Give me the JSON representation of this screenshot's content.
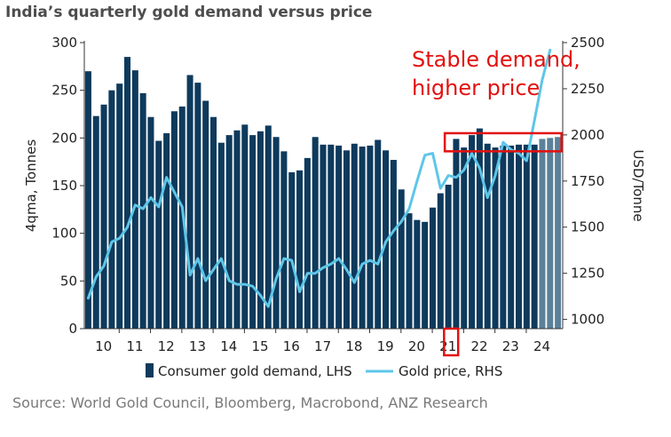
{
  "title": "India’s quarterly gold demand versus price",
  "source": "Source: World Gold Council, Bloomberg, Macrobond, ANZ Research",
  "chart_data": {
    "type": "bar",
    "title": "India’s quarterly gold demand versus price",
    "ylabel_left": "4qma, Tonnes",
    "ylabel_right": "USD/Tonne",
    "ylim_left": [
      0,
      300
    ],
    "ylim_right": [
      950,
      2500
    ],
    "yticks_left": [
      0,
      50,
      100,
      150,
      200,
      250,
      300
    ],
    "yticks_right": [
      1000,
      1250,
      1500,
      1750,
      2000,
      2250,
      2500
    ],
    "x_year_labels": [
      "10",
      "11",
      "12",
      "13",
      "14",
      "15",
      "16",
      "17",
      "18",
      "19",
      "20",
      "21",
      "22",
      "23",
      "24"
    ],
    "legend_position": "bottom",
    "grid": false,
    "colors": {
      "demand": "#0e3a5c",
      "demand_forecast": "#5b8199",
      "price": "#5ec6e8",
      "annotation": "#e3100f"
    },
    "series": [
      {
        "name": "Consumer gold demand, LHS",
        "axis": "left",
        "values": [
          270,
          223,
          235,
          250,
          257,
          285,
          271,
          247,
          222,
          197,
          205,
          228,
          233,
          266,
          258,
          239,
          222,
          195,
          203,
          208,
          214,
          203,
          207,
          213,
          201,
          186,
          164,
          166,
          179,
          201,
          193,
          193,
          192,
          187,
          194,
          191,
          192,
          198,
          187,
          177,
          146,
          121,
          114,
          112,
          127,
          142,
          151,
          199,
          190,
          203,
          210,
          194,
          190,
          192,
          192,
          193,
          193,
          193,
          199,
          200,
          201
        ],
        "forecast_from_index": 58
      },
      {
        "name": "Gold price, RHS",
        "axis": "right",
        "points": [
          [
            0,
            1115
          ],
          [
            1,
            1230
          ],
          [
            2,
            1290
          ],
          [
            3,
            1420
          ],
          [
            4,
            1440
          ],
          [
            5,
            1500
          ],
          [
            6,
            1620
          ],
          [
            7,
            1600
          ],
          [
            8,
            1660
          ],
          [
            9,
            1610
          ],
          [
            10,
            1770
          ],
          [
            11,
            1690
          ],
          [
            12,
            1610
          ],
          [
            13,
            1240
          ],
          [
            14,
            1330
          ],
          [
            15,
            1210
          ],
          [
            16,
            1270
          ],
          [
            17,
            1330
          ],
          [
            18,
            1210
          ],
          [
            19,
            1190
          ],
          [
            20,
            1190
          ],
          [
            21,
            1180
          ],
          [
            22,
            1130
          ],
          [
            23,
            1070
          ],
          [
            24,
            1220
          ],
          [
            25,
            1330
          ],
          [
            26,
            1320
          ],
          [
            27,
            1150
          ],
          [
            28,
            1250
          ],
          [
            29,
            1250
          ],
          [
            30,
            1280
          ],
          [
            31,
            1300
          ],
          [
            32,
            1330
          ],
          [
            33,
            1270
          ],
          [
            34,
            1200
          ],
          [
            35,
            1300
          ],
          [
            36,
            1320
          ],
          [
            37,
            1300
          ],
          [
            38,
            1420
          ],
          [
            39,
            1480
          ],
          [
            40,
            1530
          ],
          [
            41,
            1600
          ],
          [
            42,
            1750
          ],
          [
            43,
            1890
          ],
          [
            44,
            1900
          ],
          [
            45,
            1710
          ],
          [
            46,
            1780
          ],
          [
            47,
            1770
          ],
          [
            48,
            1810
          ],
          [
            49,
            1900
          ],
          [
            50,
            1820
          ],
          [
            51,
            1660
          ],
          [
            52,
            1780
          ],
          [
            53,
            1960
          ],
          [
            54,
            1920
          ],
          [
            55,
            1900
          ],
          [
            56,
            1860
          ],
          [
            57,
            2080
          ],
          [
            58,
            2300
          ],
          [
            59,
            2460
          ]
        ]
      }
    ],
    "annotations": [
      "Stable demand,",
      "higher price"
    ]
  }
}
